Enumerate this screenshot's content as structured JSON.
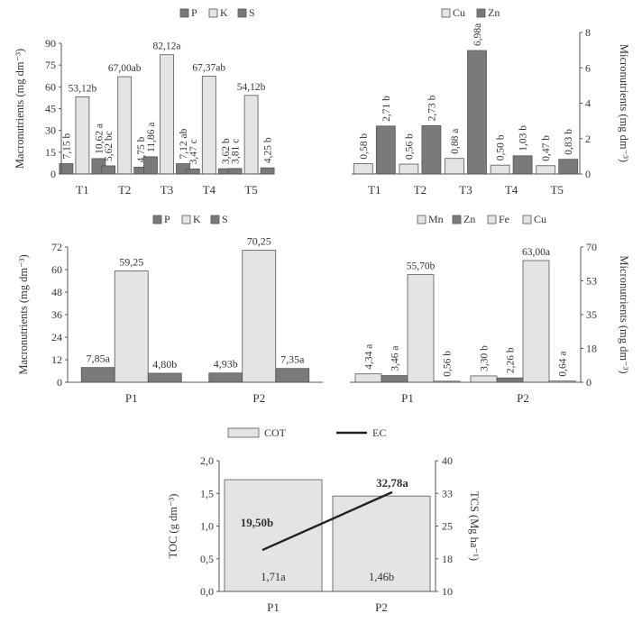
{
  "colors": {
    "dark": "#7a7a7a",
    "light": "#e4e4e4",
    "mid": "#9a9a9a",
    "stroke": "#555555",
    "line": "#222222"
  },
  "chart_data": [
    {
      "id": "A",
      "type": "bar",
      "categories": [
        "T1",
        "T2",
        "T3",
        "T4",
        "T5"
      ],
      "ylabel": "Macronutrients (mg dm⁻³)",
      "ylim": [
        0,
        90
      ],
      "yticks": [
        "0",
        "15",
        "30",
        "45",
        "60",
        "75",
        "90"
      ],
      "legend": [
        "P",
        "K",
        "S"
      ],
      "series": [
        {
          "name": "P",
          "values": [
            7.15,
            5.62,
            11.86,
            3.47,
            3.81
          ],
          "labels": [
            "7,15 b",
            "5,62 bc",
            "11,86 a",
            "3,47 c",
            "3,81 c"
          ]
        },
        {
          "name": "K",
          "values": [
            53.12,
            67.0,
            82.12,
            67.37,
            54.12
          ],
          "labels": [
            "53,12b",
            "67,00ab",
            "82,12a",
            "67,37ab",
            "54,12b"
          ]
        },
        {
          "name": "S",
          "values": [
            10.62,
            4.75,
            7.12,
            3.62,
            4.25
          ],
          "labels": [
            "10,62 a",
            "4,75 b",
            "7,12 ab",
            "3,62 b",
            "4,25 b"
          ]
        }
      ]
    },
    {
      "id": "B",
      "type": "bar",
      "categories": [
        "T1",
        "T2",
        "T3",
        "T4",
        "T5"
      ],
      "ylabel": "Micronutrients (mg dm⁻³)",
      "ylim": [
        0,
        8
      ],
      "yticks": [
        "0",
        "2",
        "4",
        "6",
        "8"
      ],
      "legend": [
        "Cu",
        "Zn"
      ],
      "series": [
        {
          "name": "Cu",
          "values": [
            0.58,
            0.56,
            0.88,
            0.5,
            0.47
          ],
          "labels": [
            "0,58 b",
            "0,56 b",
            "0,88 a",
            "0,50 b",
            "0,47 b"
          ]
        },
        {
          "name": "Zn",
          "values": [
            2.71,
            2.73,
            6.98,
            1.03,
            0.83
          ],
          "labels": [
            "2,71 b",
            "2,73 b",
            "6,98a",
            "1,03 b",
            "0,83 b"
          ]
        }
      ]
    },
    {
      "id": "C",
      "type": "bar",
      "categories": [
        "P1",
        "P2"
      ],
      "ylabel": "Macronutrients (mg dm⁻³)",
      "ylim": [
        0,
        72
      ],
      "yticks": [
        "0",
        "12",
        "24",
        "36",
        "48",
        "60",
        "72"
      ],
      "legend": [
        "P",
        "K",
        "S"
      ],
      "series": [
        {
          "name": "P",
          "values": [
            7.85,
            4.93
          ],
          "labels": [
            "7,85a",
            "4,93b"
          ]
        },
        {
          "name": "K",
          "values": [
            59.25,
            70.25
          ],
          "labels": [
            "59,25",
            "70,25"
          ]
        },
        {
          "name": "S",
          "values": [
            4.8,
            7.35
          ],
          "labels": [
            "4,80b",
            "7,35a"
          ]
        }
      ]
    },
    {
      "id": "D",
      "type": "bar",
      "categories": [
        "P1",
        "P2"
      ],
      "ylabel": "Micronutrients (mg dm⁻³)",
      "ylim": [
        0,
        70
      ],
      "yticks": [
        "0",
        "18",
        "35",
        "53",
        "70"
      ],
      "legend": [
        "Mn",
        "Zn",
        "Fe",
        "Cu"
      ],
      "series": [
        {
          "name": "Mn",
          "values": [
            4.34,
            3.3
          ],
          "labels": [
            "4,34 a",
            "3,30 b"
          ]
        },
        {
          "name": "Zn",
          "values": [
            3.46,
            2.26
          ],
          "labels": [
            "3,46 a",
            "2,26 b"
          ]
        },
        {
          "name": "Fe",
          "values": [
            55.7,
            63.0
          ],
          "labels": [
            "55,70b",
            "63,00a"
          ]
        },
        {
          "name": "Cu",
          "values": [
            0.56,
            0.64
          ],
          "labels": [
            "0,56 b",
            "0,64 a"
          ]
        }
      ]
    },
    {
      "id": "E",
      "type": "bar",
      "categories": [
        "P1",
        "P2"
      ],
      "ylabel": "TOC (g dm⁻³)",
      "ylim": [
        0,
        2
      ],
      "yticks": [
        "0,0",
        "0,5",
        "1,0",
        "1,5",
        "2,0"
      ],
      "y2label": "TCS (Mg ha⁻¹)",
      "y2lim": [
        10,
        40
      ],
      "y2ticks": [
        "10",
        "18",
        "25",
        "33",
        "40"
      ],
      "legend": [
        "COT",
        "EC"
      ],
      "bars": {
        "name": "COT",
        "values": [
          1.71,
          1.46
        ],
        "labels": [
          "1,71a",
          "1,46b"
        ]
      },
      "line": {
        "name": "EC",
        "values": [
          19.5,
          32.78
        ],
        "labels": [
          "19,50b",
          "32,78a"
        ]
      }
    }
  ]
}
